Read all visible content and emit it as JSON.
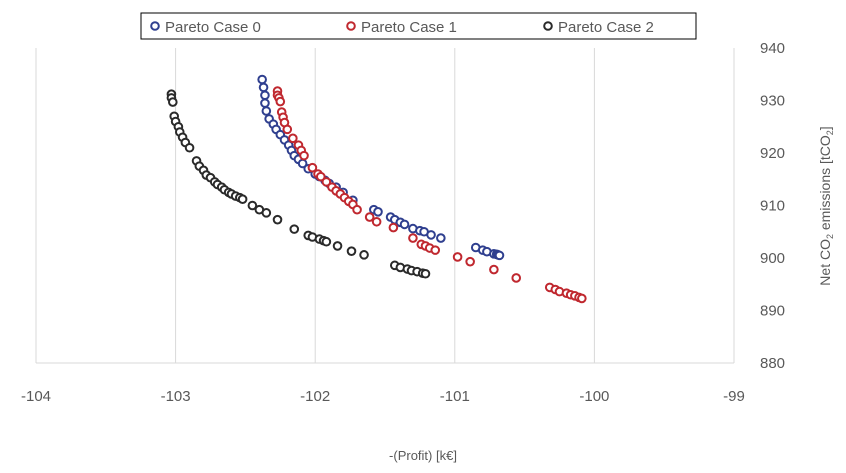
{
  "chart_data": {
    "type": "scatter",
    "xlabel": "-(Profit) [k€]",
    "ylabel": "Net CO₂ emissions [tCO₂]",
    "xlim": [
      -104,
      -99
    ],
    "ylim": [
      880,
      940
    ],
    "xticks": [
      -104,
      -103,
      -102,
      -101,
      -100,
      -99
    ],
    "yticks": [
      880,
      890,
      900,
      910,
      920,
      930,
      940
    ],
    "grid": "vertical",
    "legend_position": "top",
    "series": [
      {
        "name": "Pareto Case 0",
        "color": "#2f3f8f",
        "points": [
          [
            -102.38,
            934.0
          ],
          [
            -102.37,
            932.5
          ],
          [
            -102.36,
            931.0
          ],
          [
            -102.36,
            929.5
          ],
          [
            -102.35,
            928.0
          ],
          [
            -102.33,
            926.5
          ],
          [
            -102.3,
            925.5
          ],
          [
            -102.28,
            924.5
          ],
          [
            -102.25,
            923.5
          ],
          [
            -102.22,
            922.5
          ],
          [
            -102.19,
            921.5
          ],
          [
            -102.17,
            920.5
          ],
          [
            -102.15,
            919.5
          ],
          [
            -102.12,
            918.8
          ],
          [
            -102.09,
            918.0
          ],
          [
            -102.05,
            917.0
          ],
          [
            -102.0,
            916.0
          ],
          [
            -101.97,
            915.5
          ],
          [
            -101.93,
            914.8
          ],
          [
            -101.9,
            914.2
          ],
          [
            -101.85,
            913.5
          ],
          [
            -101.8,
            912.5
          ],
          [
            -101.73,
            911.0
          ],
          [
            -101.58,
            909.2
          ],
          [
            -101.55,
            908.8
          ],
          [
            -101.46,
            907.8
          ],
          [
            -101.43,
            907.3
          ],
          [
            -101.39,
            906.8
          ],
          [
            -101.36,
            906.4
          ],
          [
            -101.3,
            905.6
          ],
          [
            -101.25,
            905.2
          ],
          [
            -101.22,
            905.0
          ],
          [
            -101.17,
            904.4
          ],
          [
            -101.1,
            903.8
          ],
          [
            -100.85,
            902.0
          ],
          [
            -100.8,
            901.5
          ],
          [
            -100.77,
            901.2
          ],
          [
            -100.72,
            900.8
          ],
          [
            -100.7,
            900.7
          ],
          [
            -100.69,
            900.6
          ],
          [
            -100.68,
            900.5
          ]
        ]
      },
      {
        "name": "Pareto Case 1",
        "color": "#c0282f",
        "points": [
          [
            -102.27,
            931.8
          ],
          [
            -102.27,
            931.0
          ],
          [
            -102.26,
            930.5
          ],
          [
            -102.25,
            929.8
          ],
          [
            -102.24,
            927.8
          ],
          [
            -102.23,
            926.8
          ],
          [
            -102.22,
            925.8
          ],
          [
            -102.2,
            924.5
          ],
          [
            -102.16,
            922.8
          ],
          [
            -102.12,
            921.5
          ],
          [
            -102.1,
            920.5
          ],
          [
            -102.08,
            919.5
          ],
          [
            -102.02,
            917.2
          ],
          [
            -101.98,
            916.0
          ],
          [
            -101.96,
            915.5
          ],
          [
            -101.92,
            914.5
          ],
          [
            -101.88,
            913.5
          ],
          [
            -101.85,
            912.8
          ],
          [
            -101.82,
            912.2
          ],
          [
            -101.79,
            911.5
          ],
          [
            -101.76,
            910.8
          ],
          [
            -101.73,
            910.2
          ],
          [
            -101.7,
            909.2
          ],
          [
            -101.61,
            907.8
          ],
          [
            -101.56,
            906.9
          ],
          [
            -101.44,
            905.8
          ],
          [
            -101.3,
            903.8
          ],
          [
            -101.24,
            902.6
          ],
          [
            -101.21,
            902.3
          ],
          [
            -101.18,
            901.9
          ],
          [
            -101.14,
            901.5
          ],
          [
            -100.98,
            900.2
          ],
          [
            -100.89,
            899.3
          ],
          [
            -100.72,
            897.8
          ],
          [
            -100.56,
            896.2
          ],
          [
            -100.32,
            894.4
          ],
          [
            -100.28,
            894.0
          ],
          [
            -100.25,
            893.6
          ],
          [
            -100.2,
            893.3
          ],
          [
            -100.17,
            893.0
          ],
          [
            -100.14,
            892.8
          ],
          [
            -100.11,
            892.5
          ],
          [
            -100.09,
            892.3
          ]
        ]
      },
      {
        "name": "Pareto Case 2",
        "color": "#2a2a2a",
        "points": [
          [
            -103.03,
            931.2
          ],
          [
            -103.03,
            930.5
          ],
          [
            -103.02,
            929.7
          ],
          [
            -103.01,
            927.0
          ],
          [
            -103.0,
            926.0
          ],
          [
            -102.98,
            925.0
          ],
          [
            -102.97,
            924.0
          ],
          [
            -102.95,
            923.0
          ],
          [
            -102.93,
            922.0
          ],
          [
            -102.9,
            921.0
          ],
          [
            -102.85,
            918.5
          ],
          [
            -102.83,
            917.5
          ],
          [
            -102.8,
            916.7
          ],
          [
            -102.78,
            915.8
          ],
          [
            -102.75,
            915.3
          ],
          [
            -102.72,
            914.5
          ],
          [
            -102.7,
            914.0
          ],
          [
            -102.67,
            913.5
          ],
          [
            -102.65,
            913.0
          ],
          [
            -102.62,
            912.5
          ],
          [
            -102.6,
            912.2
          ],
          [
            -102.57,
            911.8
          ],
          [
            -102.54,
            911.5
          ],
          [
            -102.52,
            911.2
          ],
          [
            -102.45,
            910.0
          ],
          [
            -102.4,
            909.2
          ],
          [
            -102.35,
            908.6
          ],
          [
            -102.27,
            907.3
          ],
          [
            -102.15,
            905.5
          ],
          [
            -102.05,
            904.3
          ],
          [
            -102.02,
            904.0
          ],
          [
            -101.97,
            903.6
          ],
          [
            -101.94,
            903.3
          ],
          [
            -101.92,
            903.1
          ],
          [
            -101.84,
            902.3
          ],
          [
            -101.74,
            901.3
          ],
          [
            -101.65,
            900.6
          ],
          [
            -101.43,
            898.6
          ],
          [
            -101.39,
            898.2
          ],
          [
            -101.34,
            897.9
          ],
          [
            -101.31,
            897.6
          ],
          [
            -101.27,
            897.4
          ],
          [
            -101.23,
            897.1
          ],
          [
            -101.21,
            897.0
          ]
        ]
      }
    ]
  }
}
